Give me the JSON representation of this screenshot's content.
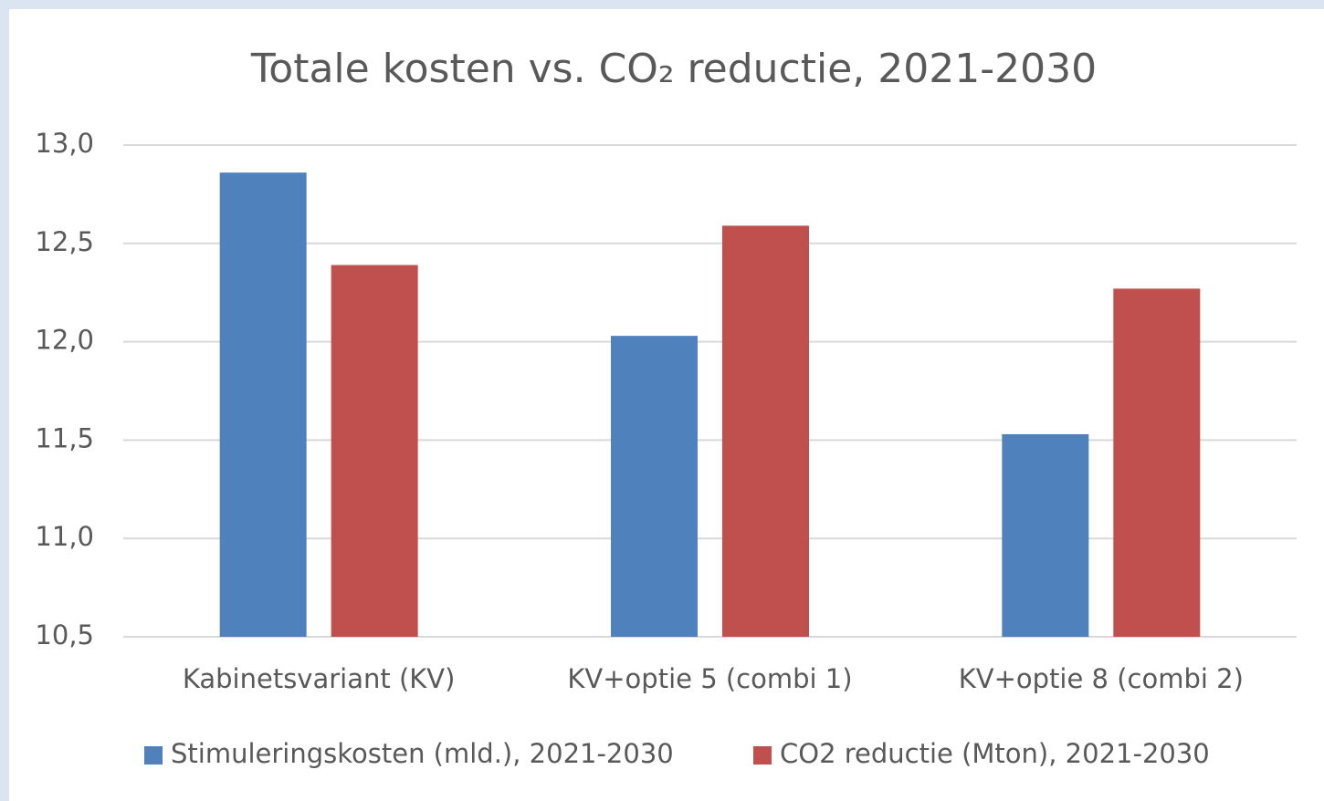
{
  "chart_data": {
    "type": "bar",
    "title": "Totale kosten vs. CO₂ reductie, 2021-2030",
    "categories": [
      "Kabinetsvariant (KV)",
      "KV+optie 5 (combi 1)",
      "KV+optie 8 (combi 2)"
    ],
    "series": [
      {
        "name": "Stimuleringskosten (mld.), 2021-2030",
        "color": "#4f81bd",
        "values": [
          12.86,
          12.03,
          11.53
        ]
      },
      {
        "name": "CO2 reductie (Mton), 2021-2030",
        "color": "#c0504d",
        "values": [
          12.39,
          12.59,
          12.27
        ]
      }
    ],
    "ylim": [
      10.5,
      13.0
    ],
    "yticks": [
      {
        "value": 10.5,
        "label": "10,5"
      },
      {
        "value": 11.0,
        "label": "11,0"
      },
      {
        "value": 11.5,
        "label": "11,5"
      },
      {
        "value": 12.0,
        "label": "12,0"
      },
      {
        "value": 12.5,
        "label": "12,5"
      },
      {
        "value": 13.0,
        "label": "13,0"
      }
    ],
    "grid": true,
    "legend": "bottom"
  }
}
